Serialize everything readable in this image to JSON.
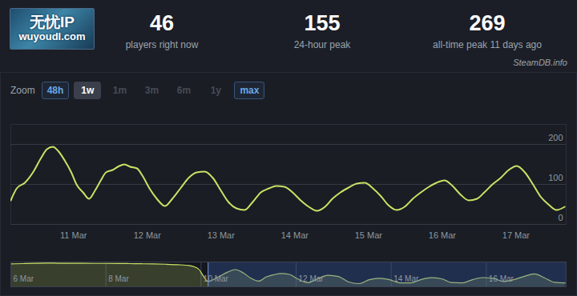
{
  "header": {
    "logo": {
      "texts": [
        "无忧IP",
        "wuyoudl.com"
      ]
    },
    "stats": [
      {
        "value": 46,
        "label": "players right now"
      },
      {
        "value": 155,
        "label": "24-hour peak"
      },
      {
        "value": 269,
        "label": "all-time peak 11 days ago"
      }
    ],
    "source": "SteamDB.info"
  },
  "zoom": {
    "label": "Zoom",
    "buttons": [
      "48h",
      "1w",
      "1m",
      "3m",
      "6m",
      "1y",
      "max"
    ],
    "active": "1w",
    "enabled": [
      "48h",
      "max"
    ]
  },
  "chart_data": [
    {
      "type": "line",
      "color": "#c9e265",
      "x": [
        10.15,
        10.23,
        10.34,
        10.45,
        10.56,
        10.64,
        10.72,
        10.79,
        10.88,
        10.97,
        11.04,
        11.13,
        11.21,
        11.29,
        11.37,
        11.44,
        11.53,
        11.62,
        11.69,
        11.77,
        11.86,
        11.94,
        12.03,
        12.13,
        12.24,
        12.34,
        12.45,
        12.56,
        12.67,
        12.78,
        12.89,
        13.0,
        13.1,
        13.21,
        13.32,
        13.43,
        13.54,
        13.65,
        13.75,
        13.86,
        13.97,
        14.08,
        14.19,
        14.3,
        14.41,
        14.51,
        14.62,
        14.73,
        14.84,
        14.95,
        15.06,
        15.17,
        15.27,
        15.38,
        15.49,
        15.6,
        15.71,
        15.82,
        15.92,
        16.03,
        16.14,
        16.25,
        16.36,
        16.47,
        16.57,
        16.68,
        16.79,
        16.9,
        17.01,
        17.12,
        17.23,
        17.33,
        17.44,
        17.55,
        17.66
      ],
      "values": [
        60,
        90,
        104,
        130,
        166,
        188,
        194,
        184,
        160,
        130,
        100,
        80,
        64,
        84,
        110,
        130,
        136,
        146,
        150,
        144,
        140,
        120,
        90,
        64,
        46,
        64,
        90,
        116,
        130,
        132,
        116,
        84,
        56,
        40,
        36,
        56,
        80,
        90,
        96,
        94,
        80,
        60,
        44,
        34,
        44,
        64,
        80,
        92,
        102,
        104,
        90,
        70,
        48,
        36,
        44,
        64,
        80,
        94,
        104,
        110,
        96,
        74,
        60,
        64,
        80,
        100,
        116,
        136,
        146,
        130,
        100,
        70,
        50,
        36,
        44
      ],
      "xlim": [
        10.15,
        17.68
      ],
      "xticks": [
        {
          "value": 11,
          "label": "11 Mar"
        },
        {
          "value": 12,
          "label": "12 Mar"
        },
        {
          "value": 13,
          "label": "13 Mar"
        },
        {
          "value": 14,
          "label": "14 Mar"
        },
        {
          "value": 15,
          "label": "15 Mar"
        },
        {
          "value": 16,
          "label": "16 Mar"
        },
        {
          "value": 17,
          "label": "17 Mar"
        }
      ],
      "ylim": [
        0,
        250
      ],
      "yticks": [
        0,
        100,
        200
      ],
      "grid": true
    },
    {
      "type": "area",
      "color": "#c9e265",
      "x": [
        6,
        6.25,
        6.5,
        6.75,
        7,
        7.25,
        7.5,
        7.75,
        8,
        8.25,
        8.5,
        8.75,
        9,
        9.25,
        9.5,
        9.75,
        9.95,
        10.05,
        10.15,
        10.34,
        10.56,
        10.72,
        10.88,
        11.04,
        11.21,
        11.37,
        11.53,
        11.69,
        11.86,
        12.03,
        12.24,
        12.45,
        12.67,
        12.89,
        13.1,
        13.32,
        13.54,
        13.75,
        13.97,
        14.19,
        14.41,
        14.62,
        14.84,
        15.06,
        15.27,
        15.49,
        15.71,
        15.92,
        16.14,
        16.36,
        16.57,
        16.79,
        17.01,
        17.23,
        17.44,
        17.66
      ],
      "values": [
        258,
        262,
        265,
        268,
        266,
        265,
        265,
        264,
        264,
        263,
        262,
        260,
        258,
        255,
        250,
        240,
        200,
        120,
        60,
        104,
        166,
        194,
        160,
        100,
        64,
        110,
        136,
        150,
        140,
        90,
        46,
        90,
        130,
        116,
        56,
        36,
        80,
        96,
        80,
        44,
        44,
        80,
        102,
        90,
        48,
        44,
        80,
        104,
        96,
        60,
        80,
        116,
        146,
        100,
        50,
        44
      ],
      "xlim": [
        6,
        17.68
      ],
      "xticks": [
        {
          "value": 6,
          "label": "6 Mar"
        },
        {
          "value": 8,
          "label": "8 Mar"
        },
        {
          "value": 10,
          "label": "10 Mar"
        },
        {
          "value": 12,
          "label": "12 Mar"
        },
        {
          "value": 14,
          "label": "14 Mar"
        },
        {
          "value": 16,
          "label": "16 Mar"
        }
      ],
      "ylim": [
        0,
        280
      ],
      "tick_labels": "x"
    }
  ]
}
